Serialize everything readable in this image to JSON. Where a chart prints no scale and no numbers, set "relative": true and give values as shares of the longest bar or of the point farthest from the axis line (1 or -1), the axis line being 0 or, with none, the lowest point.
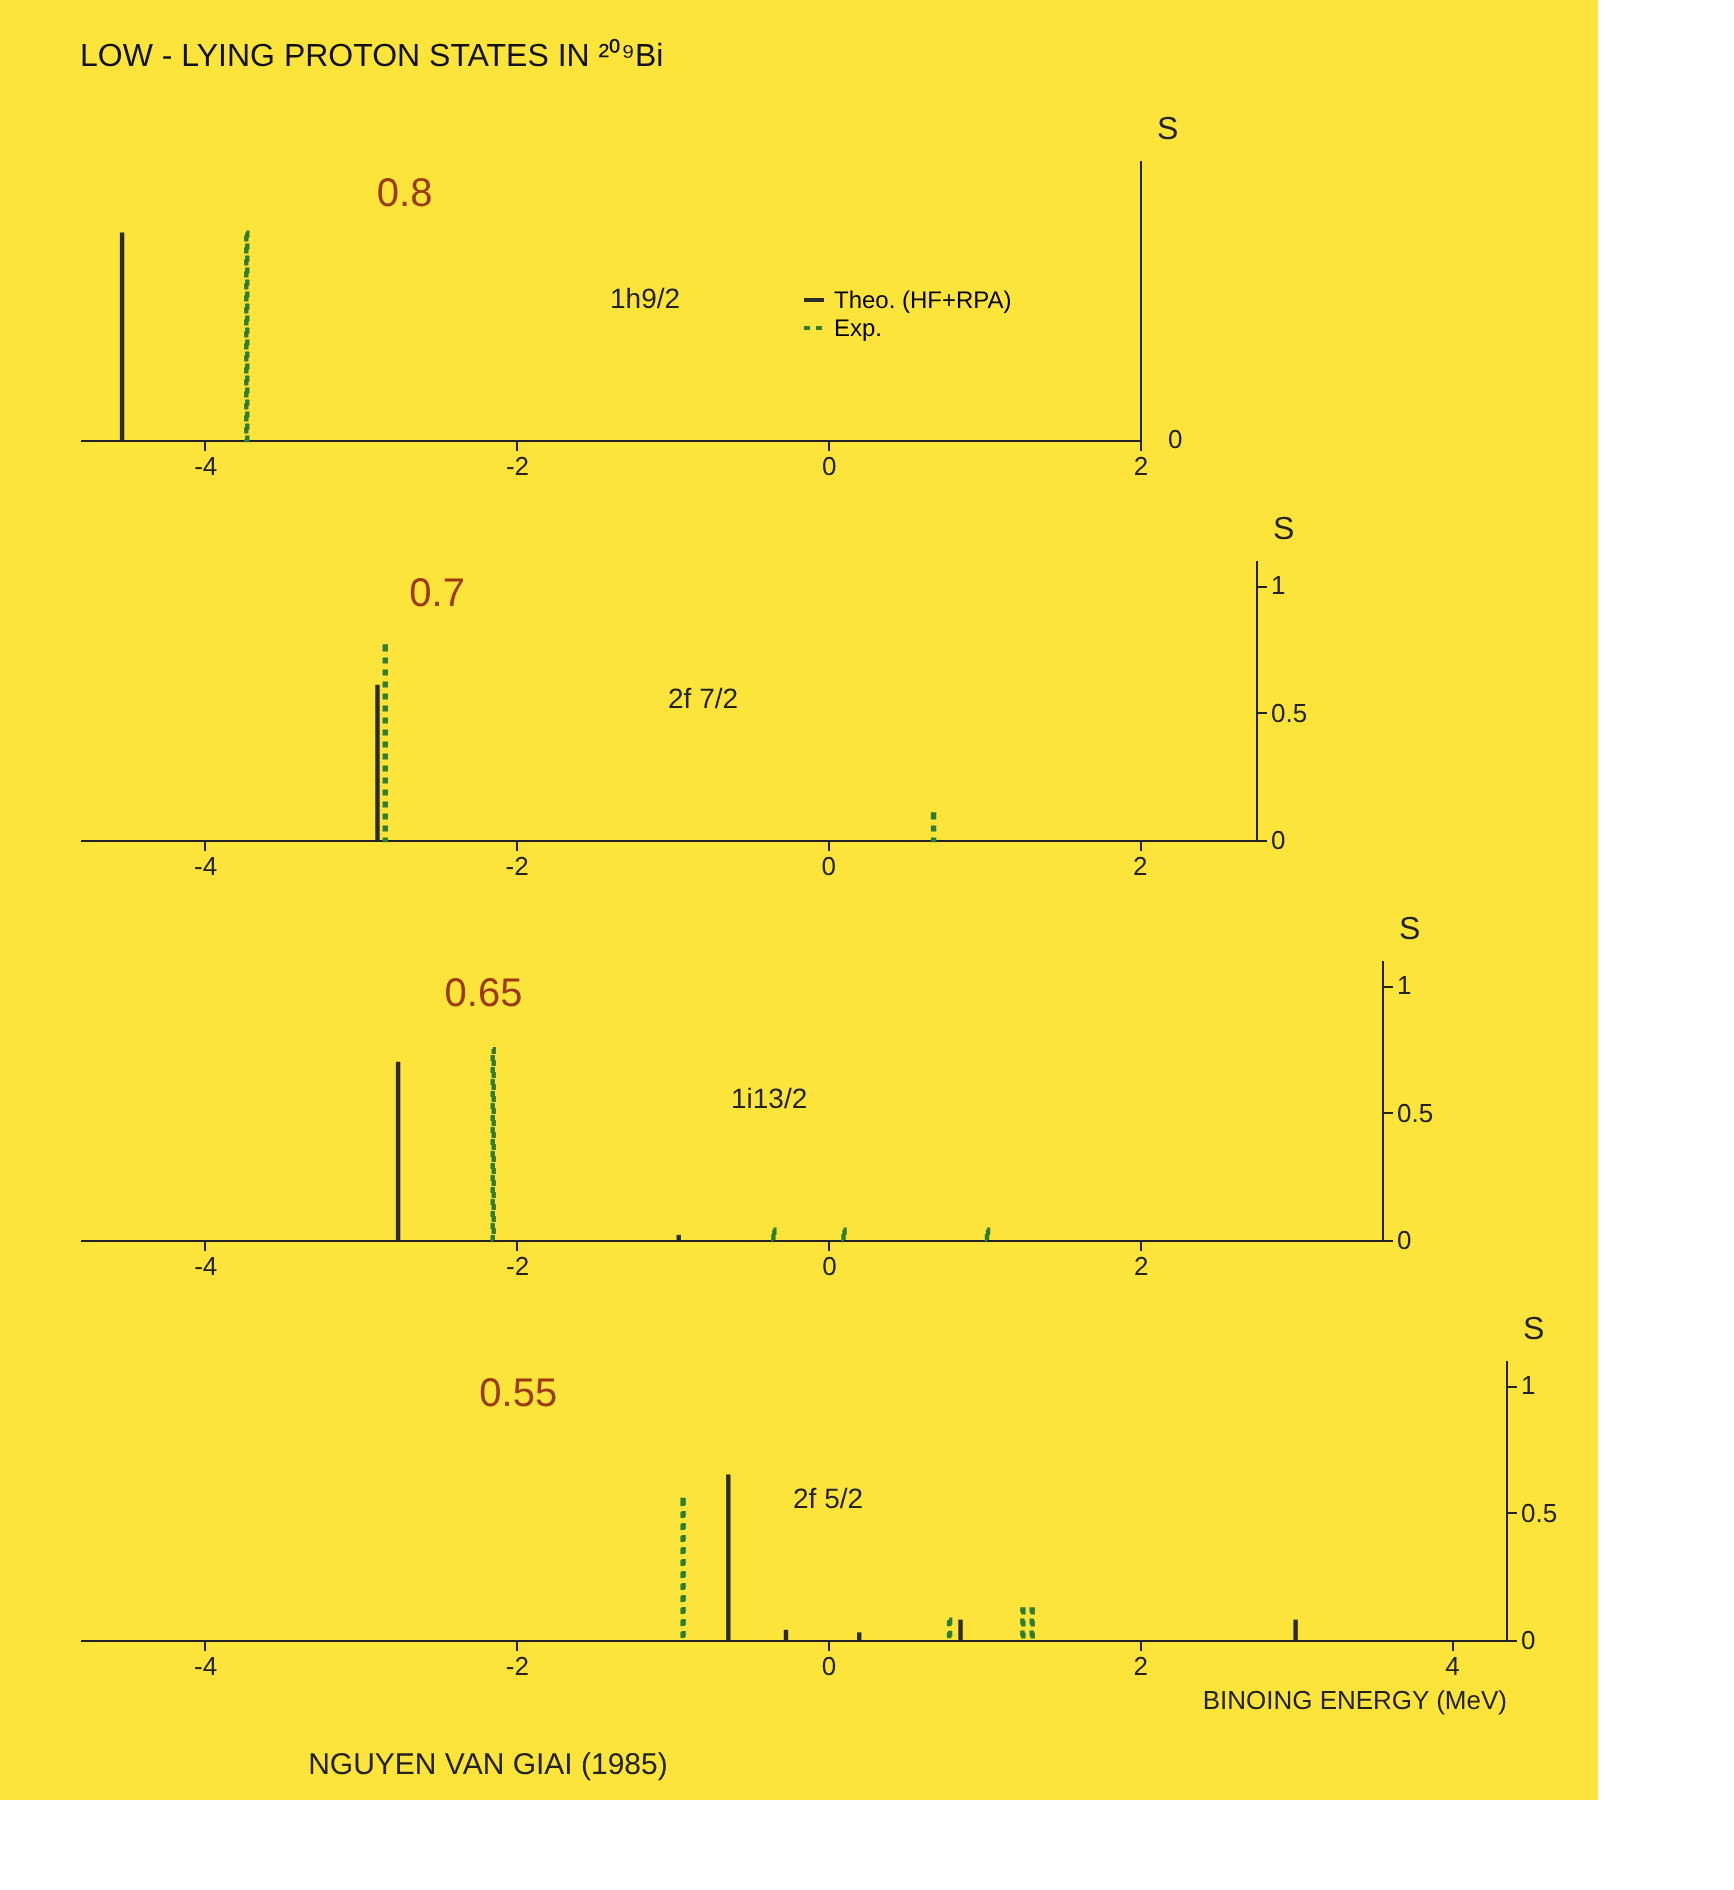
{
  "chart_data": [
    {
      "type": "bar",
      "title": "LOW - LYING PROTON STATES IN ²⁰⁹Bi",
      "subtitle": "1h9/2",
      "ylabel": "S",
      "legend": "top right",
      "relative": true,
      "xlim": [
        -4.8,
        2.0
      ],
      "xticks": [
        -4,
        -2,
        0,
        2
      ],
      "series": [
        {
          "name": "Theo. (HF+RPA)",
          "color": "#2b2b2b",
          "line_style": "solid",
          "x": [
            -4.53
          ],
          "values": [
            1
          ]
        },
        {
          "name": "Exp.",
          "color": "#2e7d32",
          "line_style": "dotted",
          "x": [
            -3.73
          ],
          "values": [
            1
          ]
        }
      ],
      "annotations": [
        "0.8",
        "0"
      ]
    },
    {
      "type": "bar",
      "subtitle": "2f 7/2",
      "ylabel": "S",
      "xlim": [
        -4.8,
        2.75
      ],
      "xticks": [
        -4,
        -2,
        0,
        2
      ],
      "ylim": [
        0,
        1.1
      ],
      "yticks": [
        0,
        0.5,
        1
      ],
      "series": [
        {
          "color": "#2b2b2b",
          "line_style": "solid",
          "x": [
            -2.89
          ],
          "values": [
            0.61
          ]
        },
        {
          "color": "#2e7d32",
          "line_style": "dotted",
          "x": [
            -2.84,
            0.68
          ],
          "values": [
            0.76,
            0.1
          ]
        }
      ],
      "annotations": [
        "0.7"
      ]
    },
    {
      "type": "bar",
      "subtitle": "1i13/2",
      "ylabel": "S",
      "xlim": [
        -4.8,
        3.55
      ],
      "xticks": [
        -4,
        -2,
        0,
        2
      ],
      "ylim": [
        0,
        1.1
      ],
      "yticks": [
        0,
        0.5,
        1
      ],
      "series": [
        {
          "color": "#2b2b2b",
          "line_style": "solid",
          "x": [
            -2.76,
            -0.96
          ],
          "values": [
            0.7,
            0.02
          ]
        },
        {
          "color": "#2e7d32",
          "line_style": "dotted",
          "x": [
            -2.15,
            -0.35,
            0.1,
            1.02
          ],
          "values": [
            0.75,
            0.04,
            0.04,
            0.04
          ]
        }
      ],
      "annotations": [
        "0.65"
      ]
    },
    {
      "type": "bar",
      "subtitle": "2f 5/2",
      "xlabel": "BINOING ENERGY (MeV)",
      "ylabel": "S",
      "xlim": [
        -4.8,
        4.35
      ],
      "xticks": [
        -4,
        -2,
        0,
        2,
        4
      ],
      "ylim": [
        0,
        1.1
      ],
      "yticks": [
        0,
        0.5,
        1
      ],
      "series": [
        {
          "color": "#2b2b2b",
          "line_style": "solid",
          "x": [
            -0.64,
            -0.27,
            0.2,
            0.85,
            3.0
          ],
          "values": [
            0.65,
            0.04,
            0.03,
            0.08,
            0.08
          ]
        },
        {
          "color": "#2e7d32",
          "line_style": "dotted",
          "x": [
            -0.93,
            0.78,
            1.25,
            1.31
          ],
          "values": [
            0.55,
            0.08,
            0.12,
            0.12
          ]
        }
      ],
      "annotations": [
        "0.55",
        "NGUYEN VAN GIAI (1985)"
      ]
    }
  ]
}
